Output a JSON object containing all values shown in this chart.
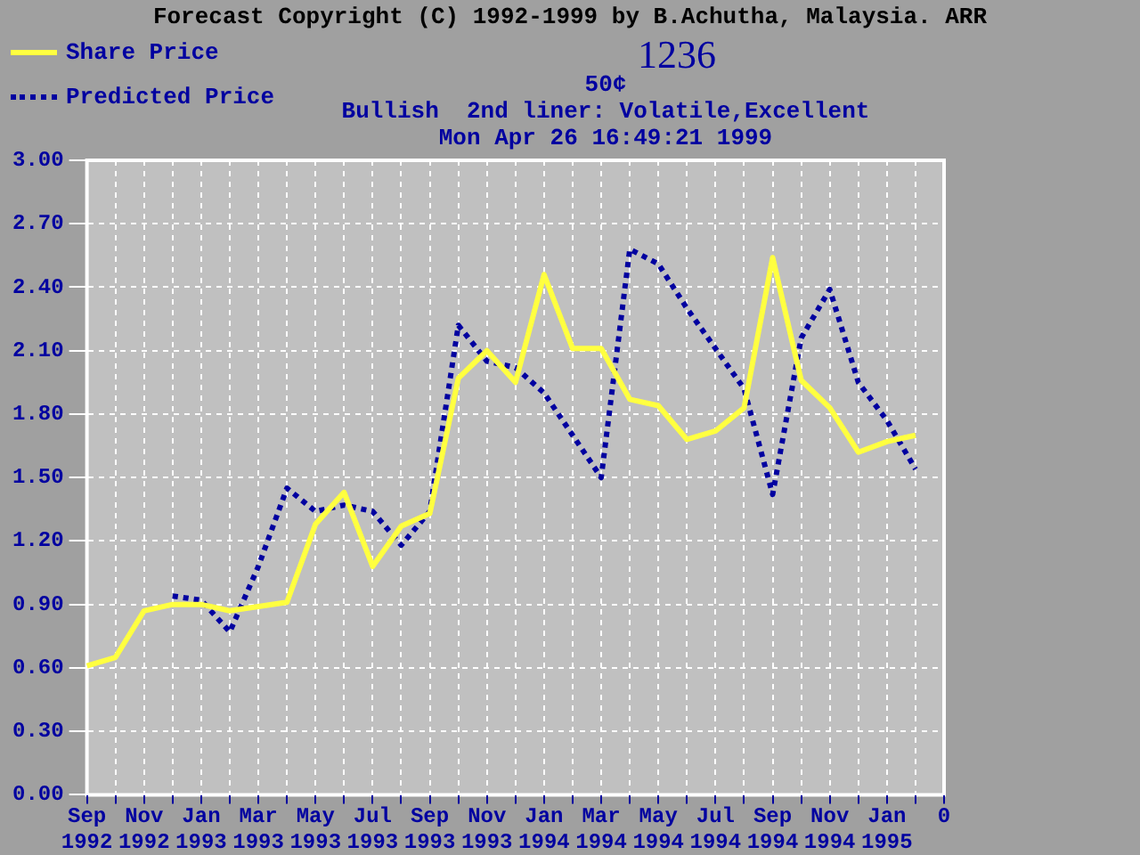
{
  "chart_data": {
    "type": "line",
    "title": "Forecast Copyright (C) 1992-1999 by B.Achutha, Malaysia. ARR",
    "subtitle": "1236",
    "annotations": [
      "50¢",
      "Bullish  2nd liner: Volatile,Excellent",
      "Mon Apr 26 16:49:21 1999"
    ],
    "categories": [
      "Sep 1992",
      null,
      "Nov 1992",
      null,
      "Jan 1993",
      null,
      "Mar 1993",
      null,
      "May 1993",
      null,
      "Jul 1993",
      null,
      "Sep 1993",
      null,
      "Nov 1993",
      null,
      "Jan 1994",
      null,
      "Mar 1994",
      null,
      "May 1994",
      null,
      "Jul 1994",
      null,
      "Sep 1994",
      null,
      "Nov 1994",
      null,
      "Jan 1995",
      null,
      "0"
    ],
    "series": [
      {
        "name": "Share Price",
        "color": "#ffff40",
        "line_style": "solid",
        "values": [
          0.61,
          0.65,
          0.87,
          0.9,
          0.9,
          0.87,
          0.89,
          0.91,
          1.28,
          1.43,
          1.08,
          1.27,
          1.33,
          1.97,
          2.1,
          1.95,
          2.46,
          2.11,
          2.11,
          1.87,
          1.84,
          1.68,
          1.72,
          1.83,
          2.54,
          1.96,
          1.83,
          1.62,
          1.67,
          1.7,
          null
        ]
      },
      {
        "name": "Predicted Price",
        "color": "#0000a0",
        "line_style": "dotted",
        "values": [
          null,
          null,
          null,
          0.94,
          0.92,
          0.77,
          1.08,
          1.45,
          1.34,
          1.37,
          1.34,
          1.18,
          1.34,
          2.22,
          2.05,
          2.02,
          1.9,
          1.7,
          1.5,
          2.58,
          2.51,
          2.3,
          2.11,
          1.92,
          1.42,
          2.16,
          2.39,
          1.95,
          1.77,
          1.54,
          null
        ]
      }
    ],
    "ylim": [
      0,
      3
    ],
    "yticks": [
      {
        "value": 0,
        "label": "0.00"
      },
      {
        "value": 0.3,
        "label": "0.30"
      },
      {
        "value": 0.6,
        "label": "0.60"
      },
      {
        "value": 0.9,
        "label": "0.90"
      },
      {
        "value": 1.2,
        "label": "1.20"
      },
      {
        "value": 1.5,
        "label": "1.50"
      },
      {
        "value": 1.8,
        "label": "1.80"
      },
      {
        "value": 2.1,
        "label": "2.10"
      },
      {
        "value": 2.4,
        "label": "2.40"
      },
      {
        "value": 2.7,
        "label": "2.70"
      },
      {
        "value": 3,
        "label": "3.00"
      }
    ],
    "grid": true,
    "legend": "top left",
    "marker": "none"
  }
}
